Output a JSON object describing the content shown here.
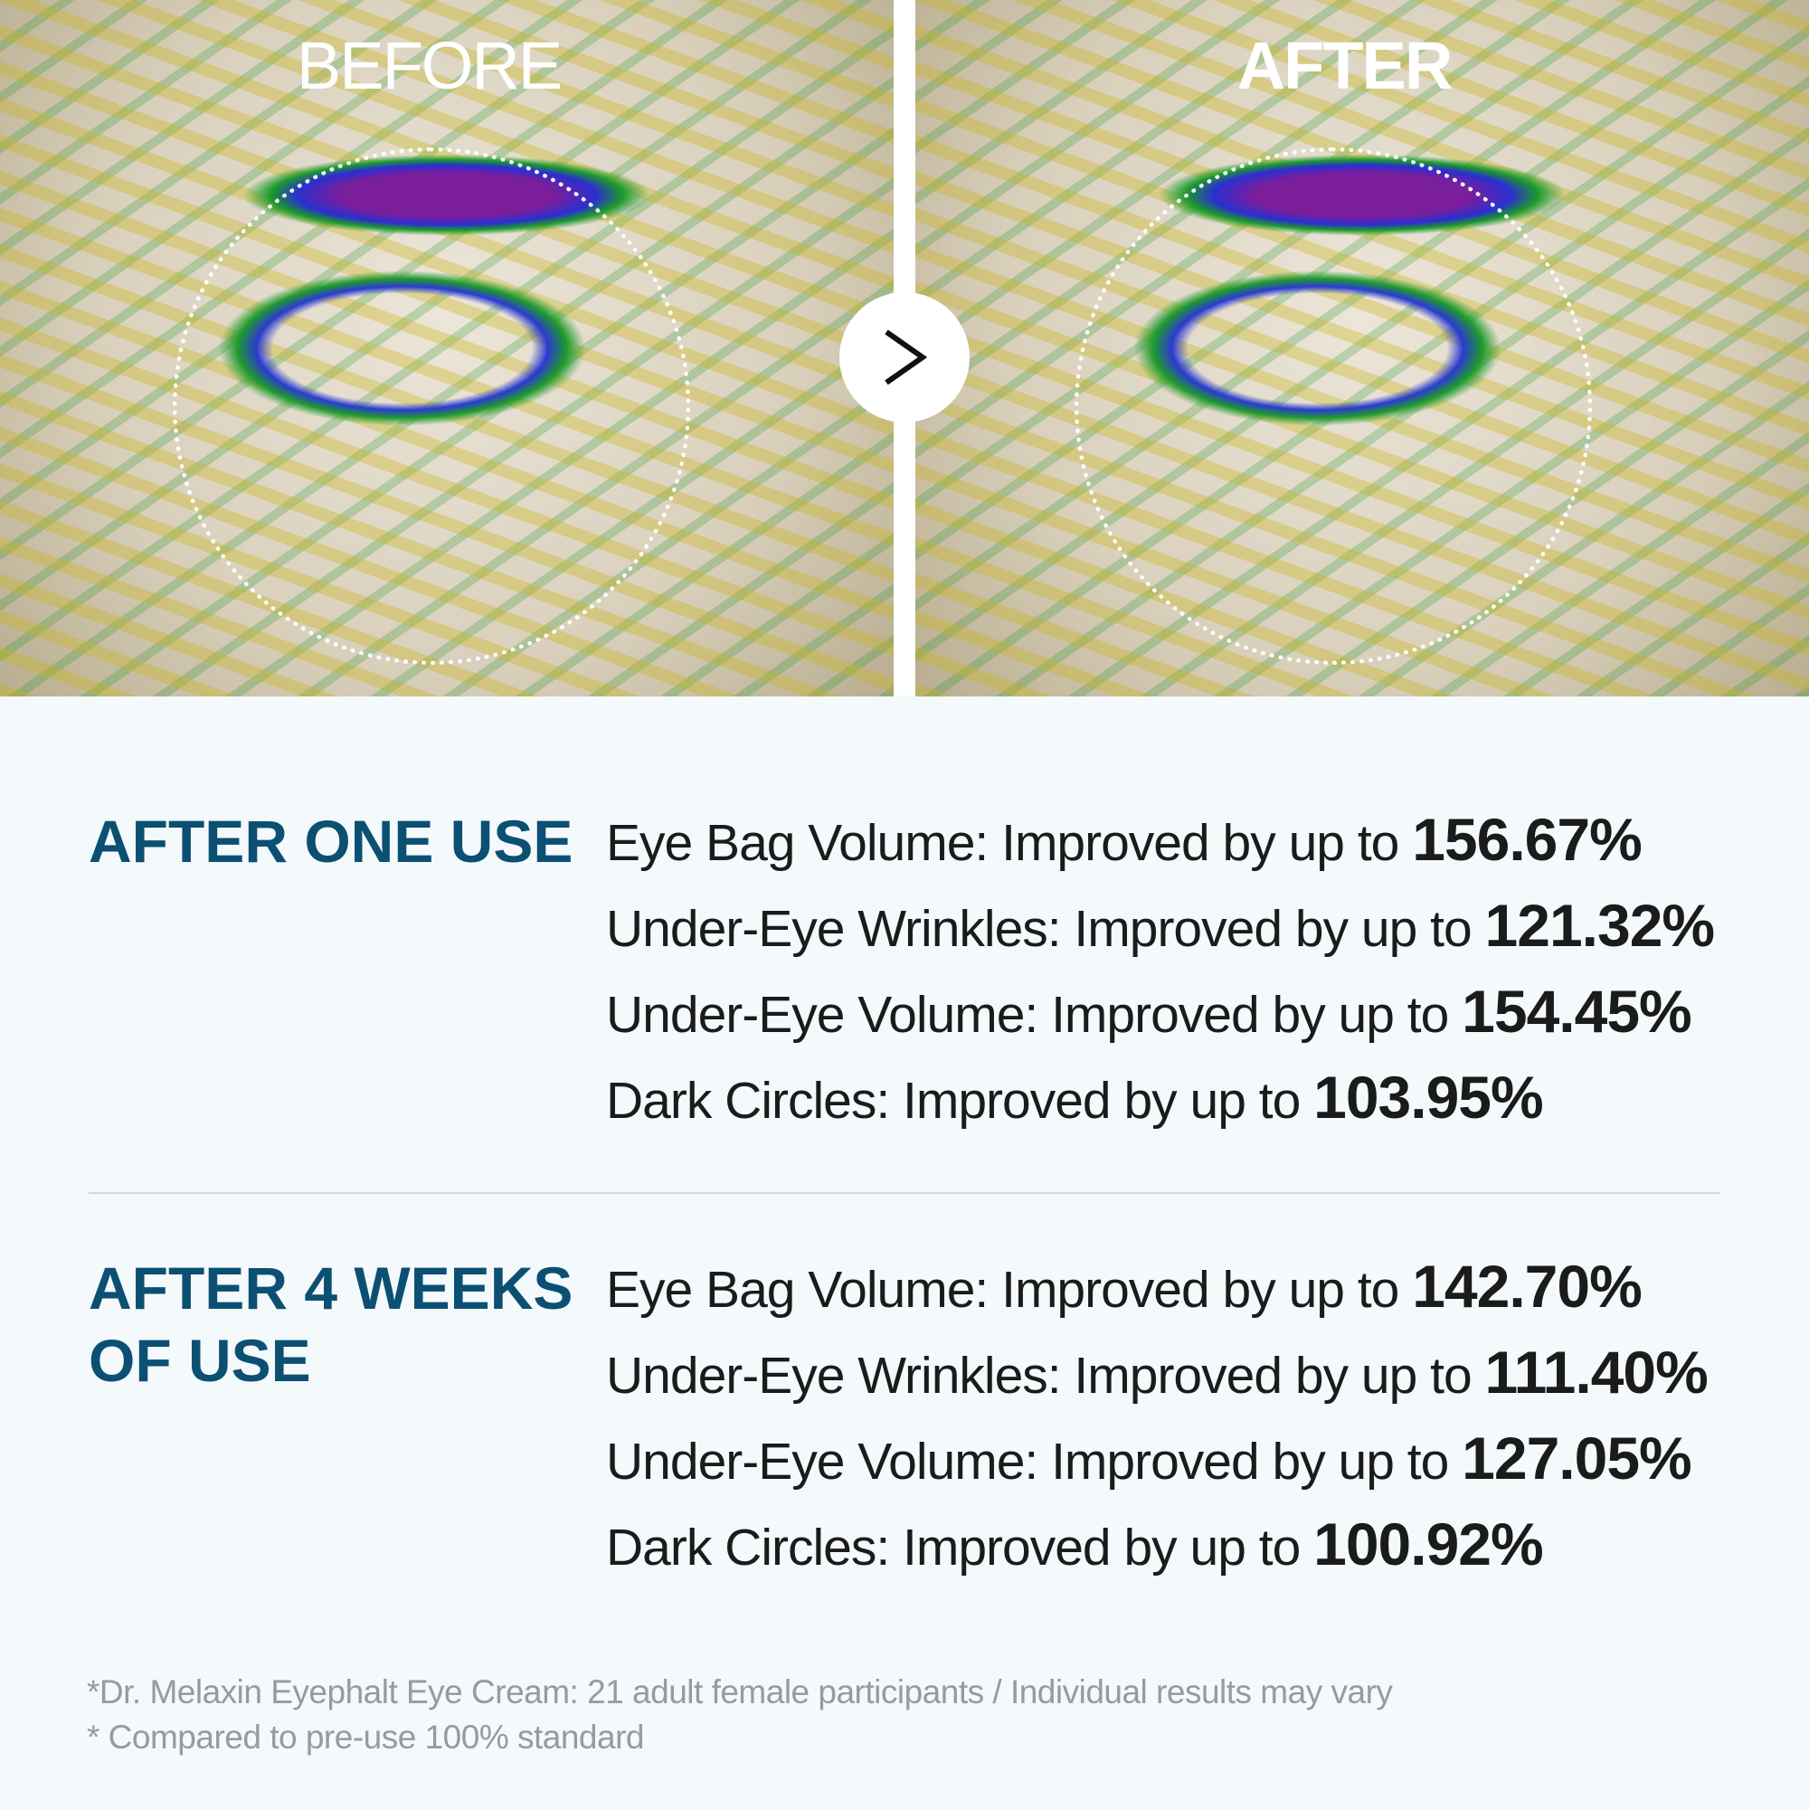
{
  "comparison": {
    "before_label": "BEFORE",
    "after_label": "AFTER",
    "next_icon": "chevron-right-icon"
  },
  "sections": [
    {
      "heading": "AFTER ONE USE",
      "items": [
        {
          "label": "Eye Bag Volume: Improved by up to ",
          "value": "156.67%"
        },
        {
          "label": "Under-Eye Wrinkles: Improved by up to ",
          "value": "121.32%"
        },
        {
          "label": "Under-Eye Volume: Improved by up to ",
          "value": "154.45%"
        },
        {
          "label": "Dark Circles: Improved by up to ",
          "value": "103.95%"
        }
      ]
    },
    {
      "heading_line1": "AFTER 4 WEEKS",
      "heading_line2": "OF USE",
      "items": [
        {
          "label": "Eye Bag Volume: Improved by up to ",
          "value": "142.70%"
        },
        {
          "label": "Under-Eye Wrinkles: Improved by up to ",
          "value": "111.40%"
        },
        {
          "label": "Under-Eye Volume: Improved by up to ",
          "value": "127.05%"
        },
        {
          "label": "Dark Circles: Improved by up to ",
          "value": "100.92%"
        }
      ]
    }
  ],
  "footnotes": [
    "*Dr. Melaxin Eyephalt Eye Cream: 21 adult female participants / Individual results may vary",
    "* Compared to pre-use 100% standard"
  ],
  "colors": {
    "heading": "#0b5072",
    "background": "#f4f9fc"
  }
}
